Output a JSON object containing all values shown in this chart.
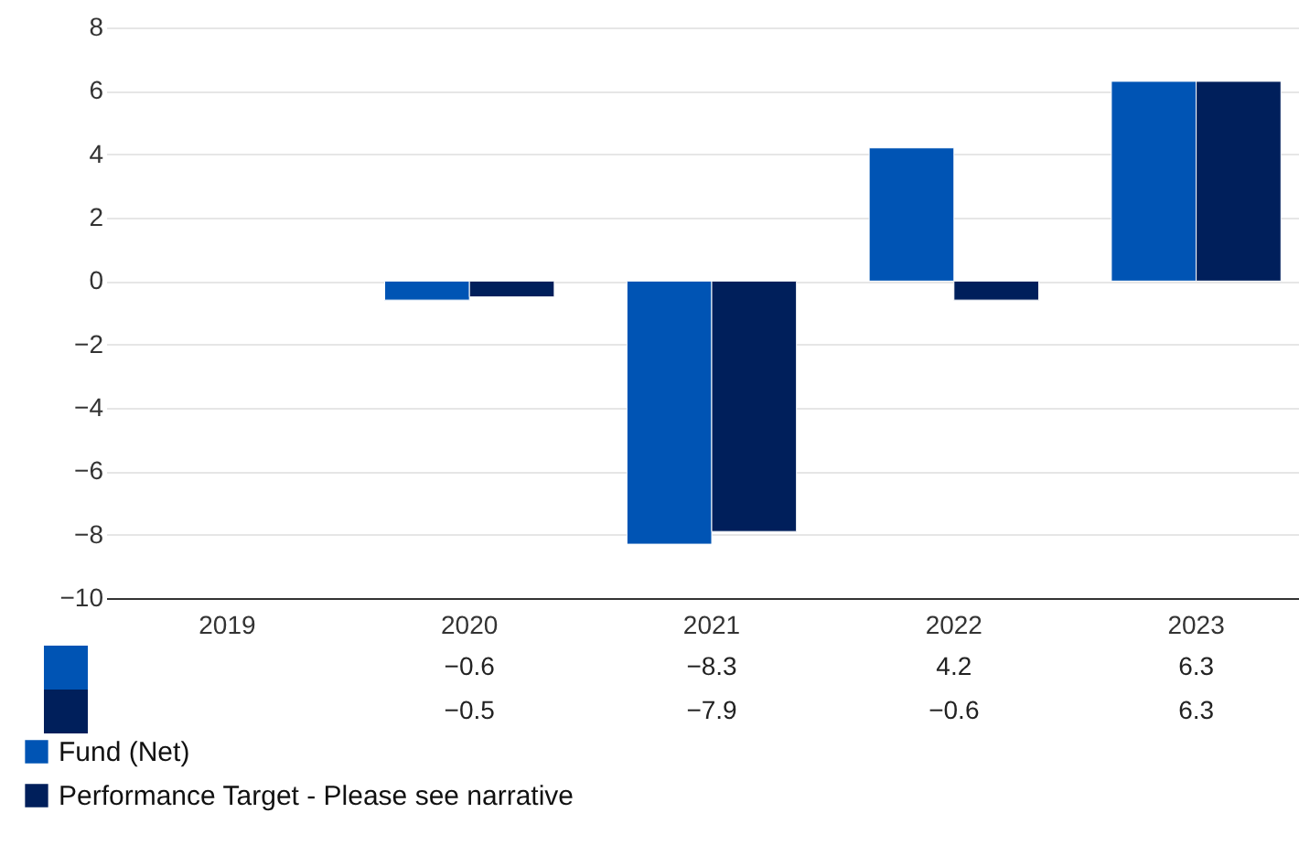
{
  "chart_data": {
    "type": "bar",
    "categories": [
      "2019",
      "2020",
      "2021",
      "2022",
      "2023"
    ],
    "series": [
      {
        "name": "Fund (Net)",
        "color": "#0054b4",
        "values": [
          null,
          -0.6,
          -8.3,
          4.2,
          6.3
        ]
      },
      {
        "name": "Performance Target - Please see narrative",
        "color": "#001f5b",
        "values": [
          null,
          -0.5,
          -7.9,
          -0.6,
          6.3
        ]
      }
    ],
    "ylim": [
      -10,
      8
    ],
    "yticks": [
      -10,
      -8,
      -6,
      -4,
      -2,
      0,
      2,
      4,
      6,
      8
    ],
    "grid": "y",
    "legend": "bottom left",
    "data_labels": true
  }
}
